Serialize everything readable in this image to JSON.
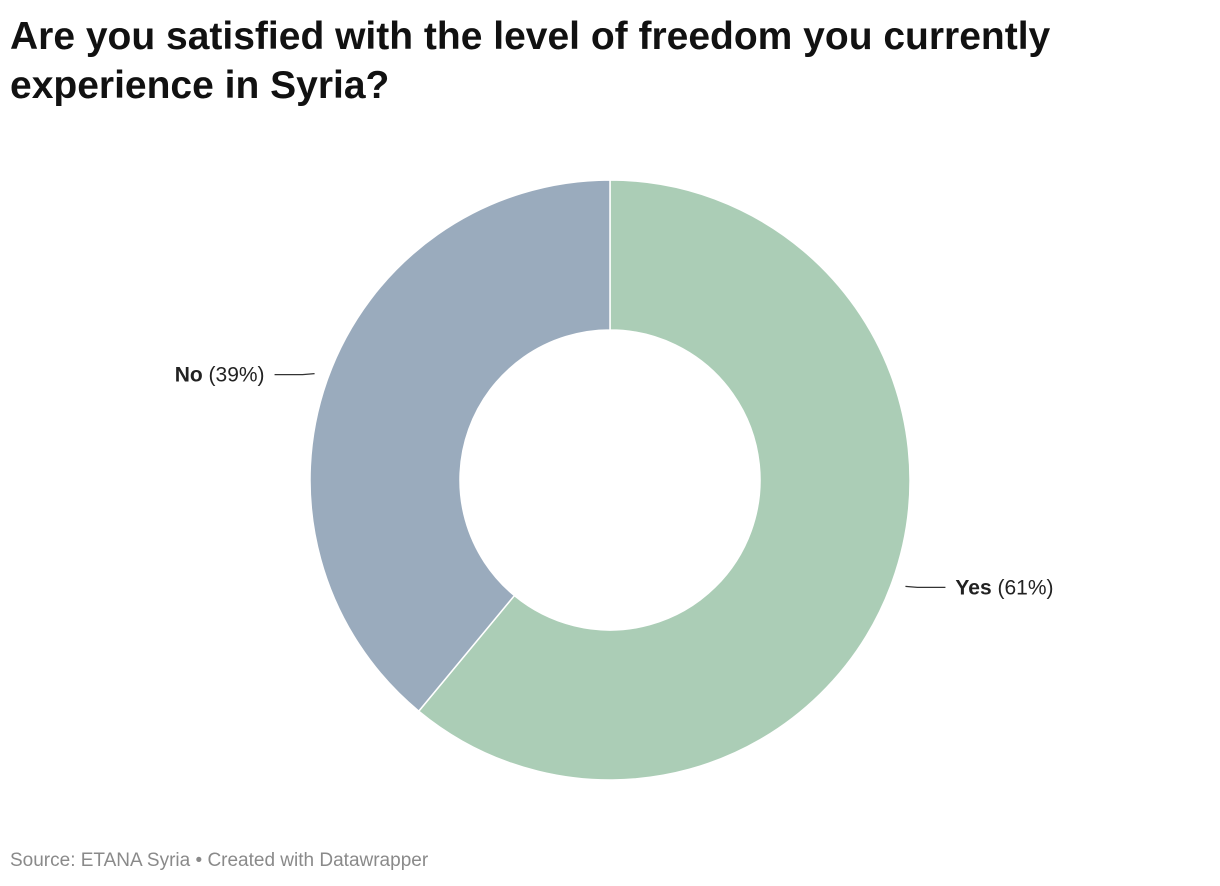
{
  "title": "Are you satisfied with the level of freedom you currently experience in Syria?",
  "footer": {
    "source": "Source: ETANA Syria",
    "separator": "•",
    "credit": "Created with Datawrapper"
  },
  "chart_data": {
    "type": "pie",
    "variant": "donut",
    "title": "Are you satisfied with the level of freedom you currently experience in Syria?",
    "slices": [
      {
        "label": "Yes",
        "value": 61,
        "display": "(61%)",
        "color": "#abcdb6"
      },
      {
        "label": "No",
        "value": 39,
        "display": "(39%)",
        "color": "#9aabbd"
      }
    ],
    "start": "12 o'clock",
    "direction": "clockwise",
    "legend": "none (direct labels)"
  }
}
